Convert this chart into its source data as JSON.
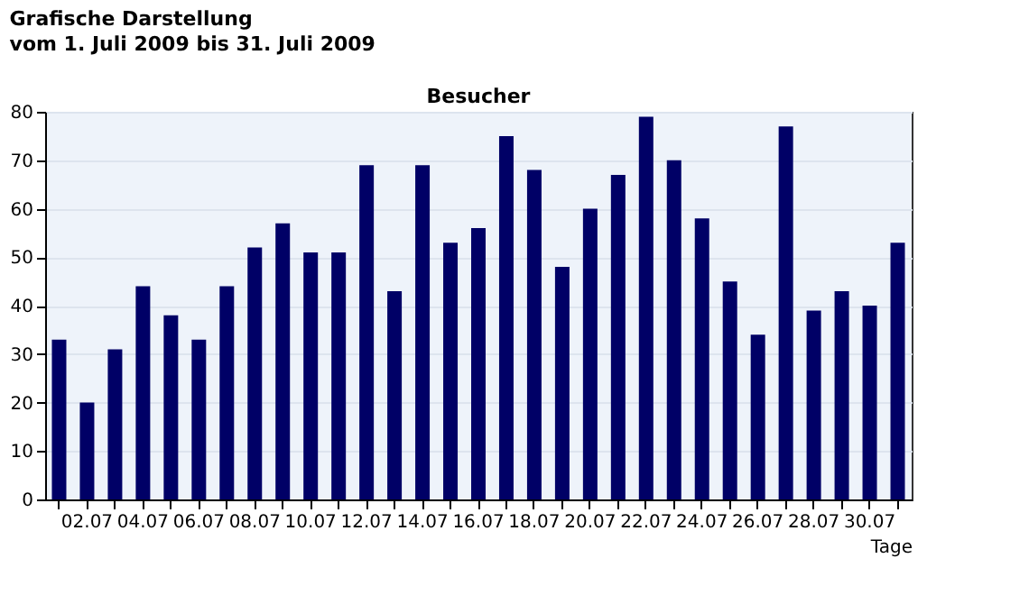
{
  "chart_data": {
    "type": "bar",
    "title": "Grafische Darstellung",
    "subtitle": "vom 1. Juli 2009  bis 31. Juli 2009",
    "annotations": [
      "Besucher"
    ],
    "xlabel": "Tage",
    "categories": [
      null,
      "02.07",
      null,
      "04.07",
      null,
      "06.07",
      null,
      "08.07",
      null,
      "10.07",
      null,
      "12.07",
      null,
      "14.07",
      null,
      "16.07",
      null,
      "18.07",
      null,
      "20.07",
      null,
      "22.07",
      null,
      "24.07",
      null,
      "26.07",
      null,
      "28.07",
      null,
      "30.07",
      null
    ],
    "values": [
      33,
      20,
      31,
      44,
      38,
      33,
      44,
      52,
      57,
      51,
      51,
      69,
      43,
      69,
      53,
      56,
      75,
      68,
      48,
      60,
      67,
      79,
      70,
      58,
      45,
      34,
      77,
      39,
      43,
      40,
      53
    ],
    "color": "#000066",
    "ylim": [
      0,
      80
    ],
    "yticks": [
      0,
      10,
      20,
      30,
      40,
      50,
      60,
      70,
      80
    ],
    "grid": "y"
  }
}
